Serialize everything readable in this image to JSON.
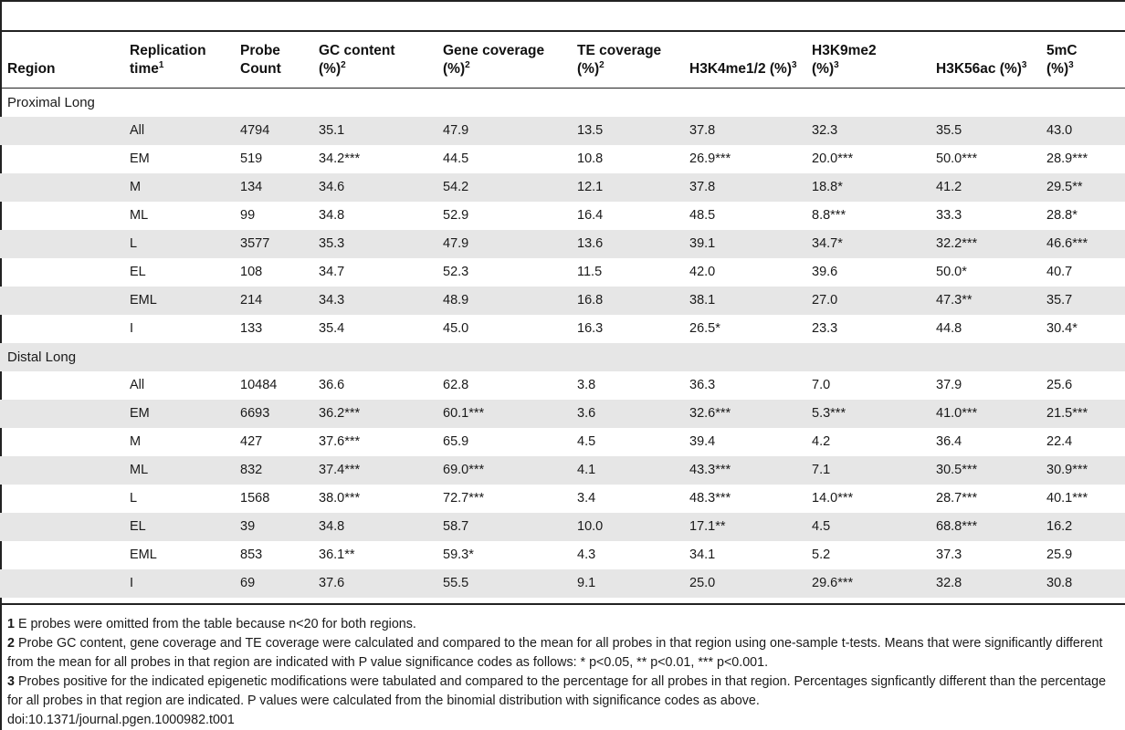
{
  "header": {
    "region": "Region",
    "replication_time": "Replication time",
    "replication_sup": "1",
    "probe_count": "Probe Count",
    "gc_content": "GC content (%)",
    "gc_sup": "2",
    "gene_coverage": "Gene coverage (%)",
    "gene_sup": "2",
    "te_coverage": "TE coverage (%)",
    "te_sup": "2",
    "h3k4": "H3K4me1/2 (%)",
    "h3k4_sup": "3",
    "h3k9": "H3K9me2 (%)",
    "h3k9_sup": "3",
    "h3k56": "H3K56ac (%)",
    "h3k56_sup": "3",
    "mc5": "5mC (%)",
    "mc5_sup": "3"
  },
  "rows": [
    {
      "group": "Proximal Long"
    },
    {
      "time": "All",
      "count": "4794",
      "gc": "35.1",
      "gene": "47.9",
      "te": "13.5",
      "h3k4": "37.8",
      "h3k9": "32.3",
      "h3k56": "35.5",
      "mc5": "43.0"
    },
    {
      "time": "EM",
      "count": "519",
      "gc": "34.2***",
      "gene": "44.5",
      "te": "10.8",
      "h3k4": "26.9***",
      "h3k9": "20.0***",
      "h3k56": "50.0***",
      "mc5": "28.9***"
    },
    {
      "time": "M",
      "count": "134",
      "gc": "34.6",
      "gene": "54.2",
      "te": "12.1",
      "h3k4": "37.8",
      "h3k9": "18.8*",
      "h3k56": "41.2",
      "mc5": "29.5**"
    },
    {
      "time": "ML",
      "count": "99",
      "gc": "34.8",
      "gene": "52.9",
      "te": "16.4",
      "h3k4": "48.5",
      "h3k9": "8.8***",
      "h3k56": "33.3",
      "mc5": "28.8*"
    },
    {
      "time": "L",
      "count": "3577",
      "gc": "35.3",
      "gene": "47.9",
      "te": "13.6",
      "h3k4": "39.1",
      "h3k9": "34.7*",
      "h3k56": "32.2***",
      "mc5": "46.6***"
    },
    {
      "time": "EL",
      "count": "108",
      "gc": "34.7",
      "gene": "52.3",
      "te": "11.5",
      "h3k4": "42.0",
      "h3k9": "39.6",
      "h3k56": "50.0*",
      "mc5": "40.7"
    },
    {
      "time": "EML",
      "count": "214",
      "gc": "34.3",
      "gene": "48.9",
      "te": "16.8",
      "h3k4": "38.1",
      "h3k9": "27.0",
      "h3k56": "47.3**",
      "mc5": "35.7"
    },
    {
      "time": "I",
      "count": "133",
      "gc": "35.4",
      "gene": "45.0",
      "te": "16.3",
      "h3k4": "26.5*",
      "h3k9": "23.3",
      "h3k56": "44.8",
      "mc5": "30.4*"
    },
    {
      "group": "Distal Long"
    },
    {
      "time": "All",
      "count": "10484",
      "gc": "36.6",
      "gene": "62.8",
      "te": "3.8",
      "h3k4": "36.3",
      "h3k9": "7.0",
      "h3k56": "37.9",
      "mc5": "25.6"
    },
    {
      "time": "EM",
      "count": "6693",
      "gc": "36.2***",
      "gene": "60.1***",
      "te": "3.6",
      "h3k4": "32.6***",
      "h3k9": "5.3***",
      "h3k56": "41.0***",
      "mc5": "21.5***"
    },
    {
      "time": "M",
      "count": "427",
      "gc": "37.6***",
      "gene": "65.9",
      "te": "4.5",
      "h3k4": "39.4",
      "h3k9": "4.2",
      "h3k56": "36.4",
      "mc5": "22.4"
    },
    {
      "time": "ML",
      "count": "832",
      "gc": "37.4***",
      "gene": "69.0***",
      "te": "4.1",
      "h3k4": "43.3***",
      "h3k9": "7.1",
      "h3k56": "30.5***",
      "mc5": "30.9***"
    },
    {
      "time": "L",
      "count": "1568",
      "gc": "38.0***",
      "gene": "72.7***",
      "te": "3.4",
      "h3k4": "48.3***",
      "h3k9": "14.0***",
      "h3k56": "28.7***",
      "mc5": "40.1***"
    },
    {
      "time": "EL",
      "count": "39",
      "gc": "34.8",
      "gene": "58.7",
      "te": "10.0",
      "h3k4": "17.1**",
      "h3k9": "4.5",
      "h3k56": "68.8***",
      "mc5": "16.2"
    },
    {
      "time": "EML",
      "count": "853",
      "gc": "36.1**",
      "gene": "59.3*",
      "te": "4.3",
      "h3k4": "34.1",
      "h3k9": "5.2",
      "h3k56": "37.3",
      "mc5": "25.9"
    },
    {
      "time": "I",
      "count": "69",
      "gc": "37.6",
      "gene": "55.5",
      "te": "9.1",
      "h3k4": "25.0",
      "h3k9": "29.6***",
      "h3k56": "32.8",
      "mc5": "30.8"
    }
  ],
  "notes": [
    {
      "num": "1",
      "text": "E probes were omitted from the table because n<20 for both regions."
    },
    {
      "num": "2",
      "text": "Probe GC content, gene coverage and TE coverage were calculated and compared to the mean for all probes in that region using one-sample t-tests. Means that were significantly different from the mean for all probes in that region are indicated with P value significance codes as follows: * p<0.05, ** p<0.01, *** p<0.001."
    },
    {
      "num": "3",
      "text": "Probes positive for the indicated epigenetic modifications were tabulated and compared to the percentage for all probes in that region. Percentages signficantly different than the percentage for all probes in that region are indicated. P values were calculated from the binomial distribution with significance codes as above."
    }
  ],
  "doi": "doi:10.1371/journal.pgen.1000982.t001"
}
